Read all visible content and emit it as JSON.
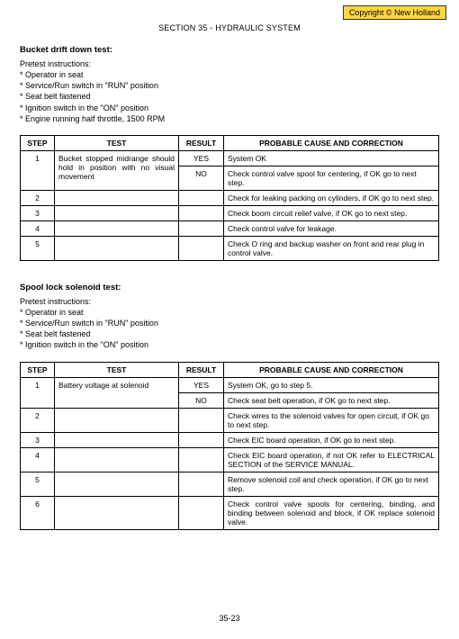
{
  "copyright": "Copyright © New Holland",
  "section_header": "SECTION 35 - HYDRAULIC SYSTEM",
  "page_number": "35-23",
  "test1": {
    "title": "Bucket drift down test:",
    "pretest_label": "Pretest instructions:",
    "pretest": [
      "* Operator in seat",
      "* Service/Run switch in \"RUN\" position",
      "* Seat belt fastened",
      "* Ignition switch in the \"ON\" position",
      "* Engine running half throttle, 1500 RPM"
    ],
    "headers": {
      "step": "STEP",
      "test": "TEST",
      "result": "RESULT",
      "cause": "PROBABLE CAUSE AND CORRECTION"
    },
    "rows": [
      {
        "step": "1",
        "test": "Bucket stopped midrange should hold in position with no visual movement",
        "result_yes": "YES",
        "result_no": "NO",
        "cause_yes": "System OK",
        "cause_no": "Check control valve spool for centering, if OK go to next step."
      },
      {
        "step": "2",
        "test": "",
        "result": "",
        "cause": "Check for leaking packing on cylinders, if OK go to next step."
      },
      {
        "step": "3",
        "test": "",
        "result": "",
        "cause": "Check boom circuit relief valve, if OK go to next step."
      },
      {
        "step": "4",
        "test": "",
        "result": "",
        "cause": "Check control valve for leakage."
      },
      {
        "step": "5",
        "test": "",
        "result": "",
        "cause": "Check O ring and backup washer on front and rear plug in control valve."
      }
    ]
  },
  "test2": {
    "title": "Spool lock solenoid test:",
    "pretest_label": "Pretest instructions:",
    "pretest": [
      "* Operator in seat",
      "* Service/Run switch in \"RUN\" position",
      "* Seat belt fastened",
      "* Ignition switch in the \"ON\" position"
    ],
    "headers": {
      "step": "STEP",
      "test": "TEST",
      "result": "RESULT",
      "cause": "PROBABLE CAUSE AND CORRECTION"
    },
    "rows": [
      {
        "step": "1",
        "test": "Battery voltage at solenoid",
        "result_yes": "YES",
        "result_no": "NO",
        "cause_yes": "System OK, go to step 5.",
        "cause_no": "Check seat belt operation, if OK go to next step."
      },
      {
        "step": "2",
        "test": "",
        "result": "",
        "cause": "Check wires to the solenoid valves for open circuit, if OK go to next step."
      },
      {
        "step": "3",
        "test": "",
        "result": "",
        "cause": "Check EIC board operation, if OK go to next step."
      },
      {
        "step": "4",
        "test": "",
        "result": "",
        "cause": "Check EIC board operation, if not OK refer to ELECTRICAL SECTION of the SERVICE MANUAL."
      },
      {
        "step": "5",
        "test": "",
        "result": "",
        "cause": "Remove solenoid coil and check operation, if OK go to next step."
      },
      {
        "step": "6",
        "test": "",
        "result": "",
        "cause": "Check control valve spools for centering, binding, and binding between solenoid and block, if OK replace solenoid valve."
      }
    ]
  }
}
